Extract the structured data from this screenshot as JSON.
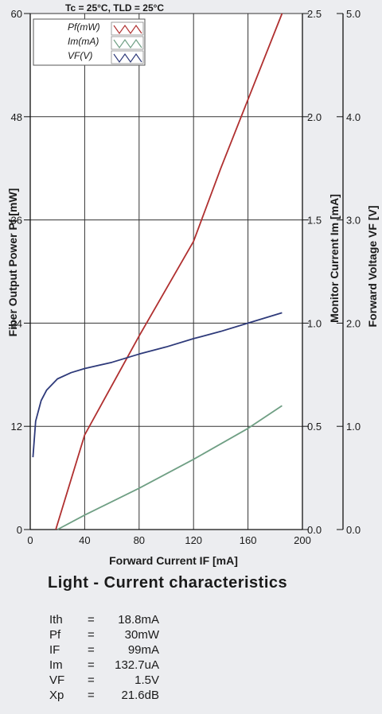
{
  "chart_data": {
    "type": "line",
    "conditions": "Tc = 25°C, TLD = 25°C",
    "xlabel": "Forward Current IF [mA]",
    "xlim": [
      0,
      200
    ],
    "x_ticks": [
      "0",
      "40",
      "80",
      "120",
      "160",
      "200"
    ],
    "axes": {
      "left": {
        "label": "Fiber Output Power Pf [mW]",
        "lim": [
          0,
          60
        ],
        "ticks": [
          "0",
          "12",
          "24",
          "36",
          "48",
          "60"
        ]
      },
      "right1": {
        "label": "Monitor Current Im [mA]",
        "lim": [
          0,
          2.5
        ],
        "ticks": [
          "0.0",
          "0.5",
          "1.0",
          "1.5",
          "2.0",
          "2.5"
        ]
      },
      "right2": {
        "label": "Forward Voltage VF [V]",
        "lim": [
          0,
          5
        ],
        "ticks": [
          "0.0",
          "1.0",
          "2.0",
          "3.0",
          "4.0",
          "5.0"
        ]
      }
    },
    "grid": true,
    "legend_position": "top-left",
    "series": [
      {
        "name": "Pf(mW)",
        "axis": "left",
        "color": "#b03030",
        "x": [
          18.8,
          40,
          80,
          100,
          120,
          140,
          160,
          185
        ],
        "y": [
          0,
          11,
          22.5,
          28,
          33.5,
          42,
          50,
          60
        ]
      },
      {
        "name": "Im(mA)",
        "axis": "right1",
        "color": "#6f9f84",
        "x": [
          20,
          40,
          80,
          120,
          160,
          185
        ],
        "y": [
          0,
          0.07,
          0.2,
          0.34,
          0.49,
          0.6
        ]
      },
      {
        "name": "VF(V)",
        "axis": "right2",
        "color": "#2e3a7a",
        "x": [
          2,
          4,
          8,
          12,
          20,
          30,
          40,
          60,
          80,
          100,
          120,
          140,
          160,
          185
        ],
        "y": [
          0.7,
          1.05,
          1.25,
          1.35,
          1.46,
          1.52,
          1.56,
          1.62,
          1.7,
          1.77,
          1.85,
          1.92,
          2.0,
          2.1
        ]
      }
    ]
  },
  "caption": "Light - Current  characteristics",
  "specs": [
    {
      "key": "Ith",
      "value": "18.8mA"
    },
    {
      "key": "Pf",
      "value": "30mW"
    },
    {
      "key": "IF",
      "value": "99mA"
    },
    {
      "key": "Im",
      "value": "132.7uA"
    },
    {
      "key": "VF",
      "value": "1.5V"
    },
    {
      "key": "Xp",
      "value": "21.6dB"
    }
  ],
  "equals_sign": "="
}
